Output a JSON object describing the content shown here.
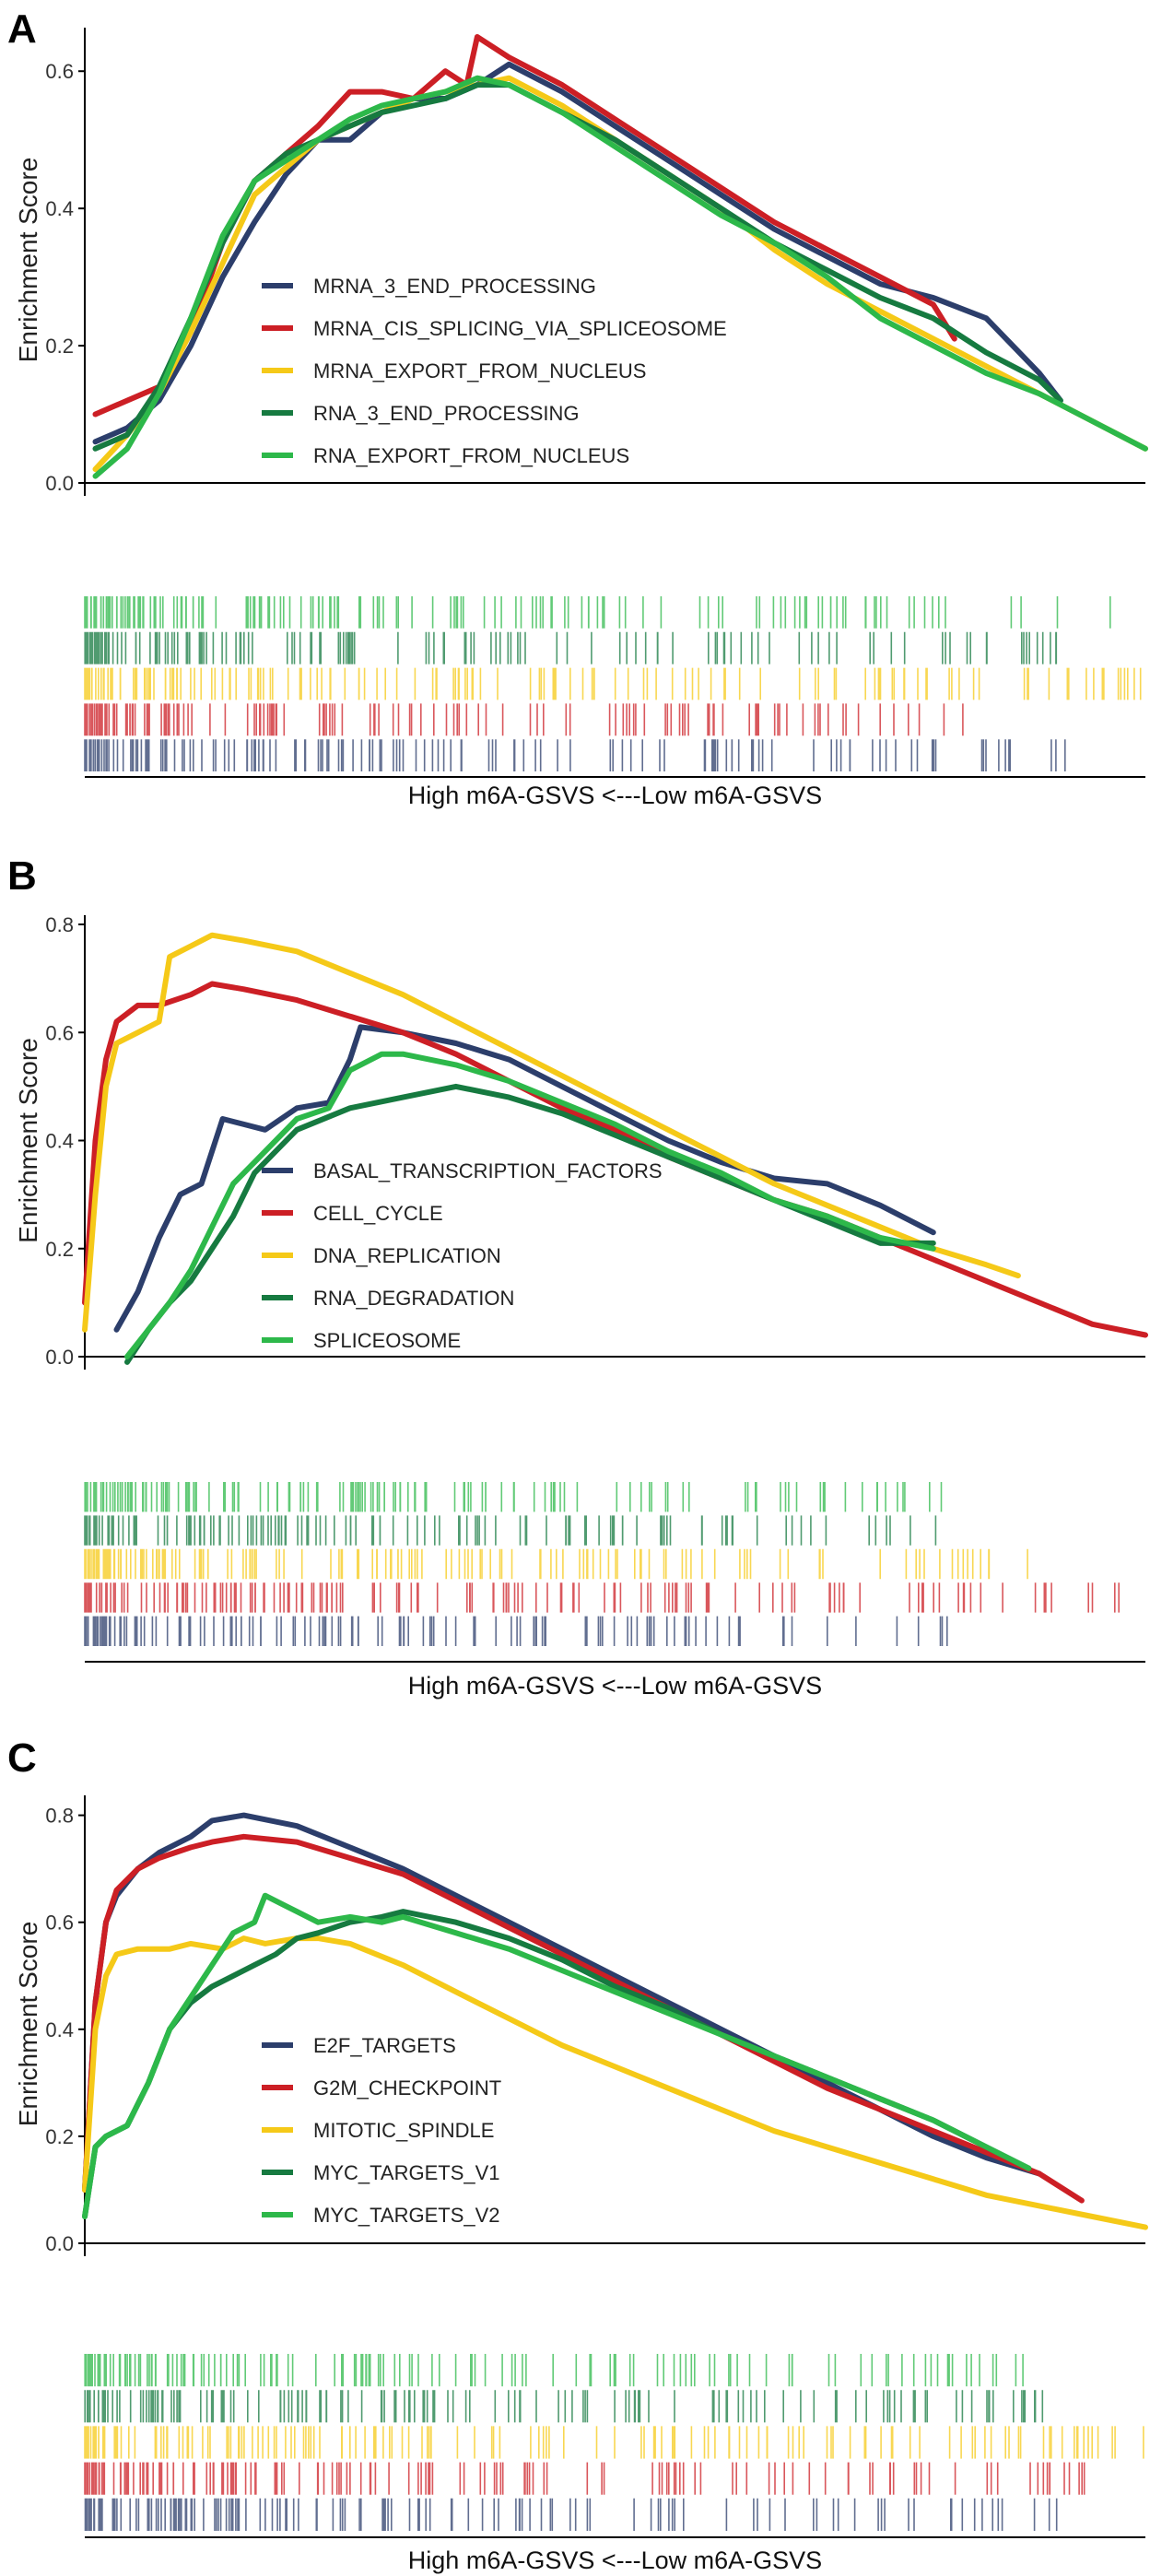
{
  "chart_data": [
    {
      "panel": "A",
      "type": "line",
      "ylabel": "Enrichment Score",
      "xlabel": "High m6A-GSVS <---Low m6A-GSVS",
      "ylim": [
        0,
        0.65
      ],
      "yticks": [
        0.0,
        0.2,
        0.4,
        0.6
      ],
      "xlim": [
        0,
        1
      ],
      "series": [
        {
          "name": "MRNA_3_END_PROCESSING",
          "color": "#2c3e6b",
          "x": [
            0.01,
            0.04,
            0.07,
            0.1,
            0.13,
            0.16,
            0.19,
            0.22,
            0.25,
            0.28,
            0.31,
            0.34,
            0.37,
            0.4,
            0.45,
            0.5,
            0.55,
            0.6,
            0.65,
            0.7,
            0.75,
            0.8,
            0.85,
            0.9,
            0.92
          ],
          "y": [
            0.06,
            0.08,
            0.12,
            0.2,
            0.3,
            0.38,
            0.45,
            0.5,
            0.5,
            0.54,
            0.56,
            0.56,
            0.58,
            0.61,
            0.57,
            0.52,
            0.47,
            0.42,
            0.37,
            0.33,
            0.29,
            0.27,
            0.24,
            0.16,
            0.12
          ]
        },
        {
          "name": "MRNA_CIS_SPLICING_VIA_SPLICEOSOME",
          "color": "#cc1f25",
          "x": [
            0.01,
            0.04,
            0.07,
            0.1,
            0.13,
            0.16,
            0.19,
            0.22,
            0.25,
            0.28,
            0.31,
            0.34,
            0.36,
            0.37,
            0.4,
            0.45,
            0.5,
            0.55,
            0.6,
            0.65,
            0.7,
            0.75,
            0.8,
            0.82
          ],
          "y": [
            0.1,
            0.12,
            0.14,
            0.22,
            0.35,
            0.44,
            0.48,
            0.52,
            0.57,
            0.57,
            0.56,
            0.6,
            0.58,
            0.65,
            0.62,
            0.58,
            0.53,
            0.48,
            0.43,
            0.38,
            0.34,
            0.3,
            0.26,
            0.21
          ]
        },
        {
          "name": "MRNA_EXPORT_FROM_NUCLEUS",
          "color": "#f5c918",
          "x": [
            0.01,
            0.04,
            0.07,
            0.1,
            0.13,
            0.16,
            0.19,
            0.22,
            0.25,
            0.28,
            0.31,
            0.34,
            0.37,
            0.4,
            0.45,
            0.5,
            0.55,
            0.6,
            0.65,
            0.7,
            0.75,
            0.8,
            0.85,
            0.9,
            0.95,
            1.0
          ],
          "y": [
            0.02,
            0.07,
            0.13,
            0.22,
            0.32,
            0.42,
            0.46,
            0.5,
            0.52,
            0.54,
            0.56,
            0.57,
            0.58,
            0.59,
            0.55,
            0.5,
            0.45,
            0.4,
            0.34,
            0.29,
            0.25,
            0.21,
            0.17,
            0.13,
            0.09,
            0.05
          ]
        },
        {
          "name": "RNA_3_END_PROCESSING",
          "color": "#167a40",
          "x": [
            0.01,
            0.04,
            0.07,
            0.1,
            0.13,
            0.16,
            0.19,
            0.22,
            0.25,
            0.28,
            0.31,
            0.34,
            0.37,
            0.4,
            0.45,
            0.5,
            0.55,
            0.6,
            0.65,
            0.7,
            0.75,
            0.8,
            0.85,
            0.9,
            0.92
          ],
          "y": [
            0.05,
            0.07,
            0.14,
            0.24,
            0.35,
            0.44,
            0.48,
            0.5,
            0.52,
            0.54,
            0.55,
            0.56,
            0.58,
            0.58,
            0.54,
            0.5,
            0.45,
            0.4,
            0.35,
            0.31,
            0.27,
            0.24,
            0.19,
            0.15,
            0.12
          ]
        },
        {
          "name": "RNA_EXPORT_FROM_NUCLEUS",
          "color": "#2db84a",
          "x": [
            0.01,
            0.04,
            0.07,
            0.1,
            0.13,
            0.16,
            0.19,
            0.22,
            0.25,
            0.28,
            0.31,
            0.34,
            0.37,
            0.4,
            0.45,
            0.5,
            0.55,
            0.6,
            0.65,
            0.7,
            0.75,
            0.8,
            0.85,
            0.9,
            0.95,
            1.0
          ],
          "y": [
            0.01,
            0.05,
            0.13,
            0.24,
            0.36,
            0.44,
            0.47,
            0.5,
            0.53,
            0.55,
            0.56,
            0.57,
            0.59,
            0.58,
            0.54,
            0.49,
            0.44,
            0.39,
            0.35,
            0.3,
            0.24,
            0.2,
            0.16,
            0.13,
            0.09,
            0.05
          ]
        }
      ]
    },
    {
      "panel": "B",
      "type": "line",
      "ylabel": "Enrichment Score",
      "xlabel": "High m6A-GSVS <---Low m6A-GSVS",
      "ylim": [
        0,
        0.8
      ],
      "yticks": [
        0.0,
        0.2,
        0.4,
        0.6,
        0.8
      ],
      "xlim": [
        0,
        1
      ],
      "series": [
        {
          "name": "BASAL_TRANSCRIPTION_FACTORS",
          "color": "#2c3e6b",
          "x": [
            0.03,
            0.05,
            0.07,
            0.09,
            0.11,
            0.13,
            0.15,
            0.17,
            0.2,
            0.23,
            0.25,
            0.26,
            0.3,
            0.35,
            0.4,
            0.45,
            0.5,
            0.55,
            0.6,
            0.65,
            0.7,
            0.75,
            0.8
          ],
          "y": [
            0.05,
            0.12,
            0.22,
            0.3,
            0.32,
            0.44,
            0.43,
            0.42,
            0.46,
            0.47,
            0.55,
            0.61,
            0.6,
            0.58,
            0.55,
            0.5,
            0.45,
            0.4,
            0.36,
            0.33,
            0.32,
            0.28,
            0.23
          ]
        },
        {
          "name": "CELL_CYCLE",
          "color": "#cc1f25",
          "x": [
            0.0,
            0.01,
            0.02,
            0.03,
            0.05,
            0.07,
            0.1,
            0.12,
            0.15,
            0.2,
            0.25,
            0.3,
            0.35,
            0.4,
            0.45,
            0.5,
            0.55,
            0.6,
            0.65,
            0.7,
            0.75,
            0.8,
            0.85,
            0.9,
            0.95,
            1.0
          ],
          "y": [
            0.1,
            0.4,
            0.55,
            0.62,
            0.65,
            0.65,
            0.67,
            0.69,
            0.68,
            0.66,
            0.63,
            0.6,
            0.56,
            0.51,
            0.46,
            0.42,
            0.37,
            0.33,
            0.29,
            0.26,
            0.22,
            0.18,
            0.14,
            0.1,
            0.06,
            0.04
          ]
        },
        {
          "name": "DNA_REPLICATION",
          "color": "#f5c918",
          "x": [
            0.0,
            0.01,
            0.02,
            0.03,
            0.05,
            0.07,
            0.08,
            0.1,
            0.12,
            0.15,
            0.2,
            0.25,
            0.3,
            0.35,
            0.4,
            0.45,
            0.5,
            0.55,
            0.6,
            0.65,
            0.7,
            0.75,
            0.8,
            0.85,
            0.88
          ],
          "y": [
            0.05,
            0.3,
            0.5,
            0.58,
            0.6,
            0.62,
            0.74,
            0.76,
            0.78,
            0.77,
            0.75,
            0.71,
            0.67,
            0.62,
            0.57,
            0.52,
            0.47,
            0.42,
            0.37,
            0.32,
            0.28,
            0.24,
            0.2,
            0.17,
            0.15
          ]
        },
        {
          "name": "RNA_DEGRADATION",
          "color": "#167a40",
          "x": [
            0.04,
            0.06,
            0.08,
            0.1,
            0.12,
            0.14,
            0.16,
            0.18,
            0.2,
            0.25,
            0.3,
            0.35,
            0.4,
            0.45,
            0.5,
            0.55,
            0.6,
            0.65,
            0.7,
            0.75,
            0.78,
            0.8
          ],
          "y": [
            -0.01,
            0.05,
            0.1,
            0.14,
            0.2,
            0.26,
            0.34,
            0.38,
            0.42,
            0.46,
            0.48,
            0.5,
            0.48,
            0.45,
            0.41,
            0.37,
            0.33,
            0.29,
            0.25,
            0.21,
            0.21,
            0.21
          ]
        },
        {
          "name": "SPLICEOSOME",
          "color": "#2db84a",
          "x": [
            0.04,
            0.06,
            0.08,
            0.1,
            0.12,
            0.14,
            0.16,
            0.18,
            0.2,
            0.23,
            0.25,
            0.28,
            0.3,
            0.35,
            0.4,
            0.45,
            0.5,
            0.55,
            0.6,
            0.65,
            0.7,
            0.75,
            0.8
          ],
          "y": [
            0.0,
            0.05,
            0.1,
            0.16,
            0.24,
            0.32,
            0.36,
            0.4,
            0.44,
            0.46,
            0.53,
            0.56,
            0.56,
            0.54,
            0.51,
            0.47,
            0.43,
            0.38,
            0.34,
            0.29,
            0.26,
            0.22,
            0.2
          ]
        }
      ]
    },
    {
      "panel": "C",
      "type": "line",
      "ylabel": "Enrichment Score",
      "xlabel": "High m6A-GSVS <---Low m6A-GSVS",
      "ylim": [
        0,
        0.82
      ],
      "yticks": [
        0.0,
        0.2,
        0.4,
        0.6,
        0.8
      ],
      "xlim": [
        0,
        1
      ],
      "series": [
        {
          "name": "E2F_TARGETS",
          "color": "#2c3e6b",
          "x": [
            0.0,
            0.01,
            0.02,
            0.03,
            0.05,
            0.07,
            0.1,
            0.12,
            0.15,
            0.2,
            0.25,
            0.3,
            0.35,
            0.4,
            0.45,
            0.5,
            0.55,
            0.6,
            0.65,
            0.7,
            0.75,
            0.8,
            0.85,
            0.9
          ],
          "y": [
            0.1,
            0.45,
            0.6,
            0.65,
            0.7,
            0.73,
            0.76,
            0.79,
            0.8,
            0.78,
            0.74,
            0.7,
            0.65,
            0.6,
            0.55,
            0.5,
            0.45,
            0.4,
            0.35,
            0.3,
            0.25,
            0.2,
            0.16,
            0.13
          ]
        },
        {
          "name": "G2M_CHECKPOINT",
          "color": "#cc1f25",
          "x": [
            0.0,
            0.01,
            0.02,
            0.03,
            0.05,
            0.07,
            0.1,
            0.12,
            0.15,
            0.2,
            0.25,
            0.3,
            0.35,
            0.4,
            0.45,
            0.5,
            0.55,
            0.6,
            0.65,
            0.7,
            0.75,
            0.8,
            0.85,
            0.9,
            0.94
          ],
          "y": [
            0.1,
            0.45,
            0.6,
            0.66,
            0.7,
            0.72,
            0.74,
            0.75,
            0.76,
            0.75,
            0.72,
            0.69,
            0.64,
            0.59,
            0.54,
            0.49,
            0.44,
            0.39,
            0.34,
            0.29,
            0.25,
            0.21,
            0.17,
            0.13,
            0.08
          ]
        },
        {
          "name": "MITOTIC_SPINDLE",
          "color": "#f5c918",
          "x": [
            0.0,
            0.01,
            0.02,
            0.03,
            0.05,
            0.08,
            0.1,
            0.13,
            0.15,
            0.17,
            0.2,
            0.22,
            0.25,
            0.3,
            0.35,
            0.4,
            0.45,
            0.5,
            0.55,
            0.6,
            0.65,
            0.7,
            0.75,
            0.8,
            0.85,
            0.9,
            0.95,
            1.0
          ],
          "y": [
            0.1,
            0.4,
            0.5,
            0.54,
            0.55,
            0.55,
            0.56,
            0.55,
            0.57,
            0.56,
            0.57,
            0.57,
            0.56,
            0.52,
            0.47,
            0.42,
            0.37,
            0.33,
            0.29,
            0.25,
            0.21,
            0.18,
            0.15,
            0.12,
            0.09,
            0.07,
            0.05,
            0.03
          ]
        },
        {
          "name": "MYC_TARGETS_V1",
          "color": "#167a40",
          "x": [
            0.0,
            0.01,
            0.02,
            0.04,
            0.06,
            0.08,
            0.1,
            0.12,
            0.14,
            0.16,
            0.18,
            0.2,
            0.22,
            0.25,
            0.28,
            0.3,
            0.35,
            0.4,
            0.45,
            0.5,
            0.55,
            0.6,
            0.65,
            0.7,
            0.75,
            0.8,
            0.85,
            0.89
          ],
          "y": [
            0.05,
            0.18,
            0.2,
            0.22,
            0.3,
            0.4,
            0.45,
            0.48,
            0.5,
            0.52,
            0.54,
            0.57,
            0.58,
            0.6,
            0.61,
            0.62,
            0.6,
            0.57,
            0.53,
            0.48,
            0.44,
            0.39,
            0.35,
            0.31,
            0.27,
            0.23,
            0.18,
            0.14
          ]
        },
        {
          "name": "MYC_TARGETS_V2",
          "color": "#2db84a",
          "x": [
            0.0,
            0.01,
            0.02,
            0.04,
            0.06,
            0.08,
            0.1,
            0.12,
            0.14,
            0.16,
            0.17,
            0.19,
            0.2,
            0.22,
            0.25,
            0.28,
            0.3,
            0.35,
            0.4,
            0.45,
            0.5,
            0.55,
            0.6,
            0.65,
            0.7,
            0.75,
            0.8,
            0.85,
            0.89
          ],
          "y": [
            0.05,
            0.18,
            0.2,
            0.22,
            0.3,
            0.4,
            0.46,
            0.52,
            0.58,
            0.6,
            0.65,
            0.63,
            0.62,
            0.6,
            0.61,
            0.6,
            0.61,
            0.58,
            0.55,
            0.51,
            0.47,
            0.43,
            0.39,
            0.35,
            0.31,
            0.27,
            0.23,
            0.18,
            0.14
          ]
        }
      ]
    }
  ]
}
